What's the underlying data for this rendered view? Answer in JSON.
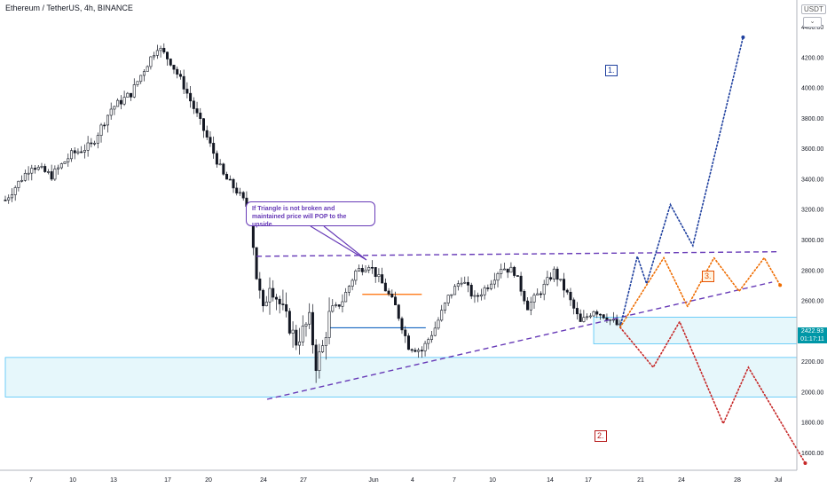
{
  "chart_title": "Ethereum / TetherUS, 4h, BINANCE",
  "currency": "USDT",
  "nav_icon": "chevron-icon",
  "callout_text": "If Triangle is not broken and maintained price will POP to the upside.",
  "scenario_labels": {
    "one": "1.",
    "two": "2.",
    "three": "3."
  },
  "last_price": {
    "value": "2422.93",
    "countdown": "01:17:11"
  },
  "colors": {
    "candle": "#131722",
    "triangle_line": "#673ab7",
    "zone_fill": "#e6f7fb",
    "zone_border": "#4fc3f7",
    "scenario_1": "#1e3f9e",
    "scenario_2": "#c62828",
    "scenario_3": "#ef6c00",
    "orange_level": "#ff6d00",
    "blue_level": "#1565c0",
    "price_label": "#0097a7"
  },
  "chart_data": {
    "type": "candlestick",
    "title": "Ethereum / TetherUS, 4h, BINANCE",
    "ylabel": "USDT",
    "ylim": [
      1500,
      4600
    ],
    "y_ticks": [
      1600,
      1800,
      2000,
      2200,
      2400,
      2600,
      2800,
      3000,
      3200,
      3400,
      3600,
      3800,
      4000,
      4200,
      4400
    ],
    "x_ticks": [
      "7",
      "10",
      "13",
      "17",
      "20",
      "24",
      "27",
      "Jun",
      "4",
      "7",
      "10",
      "14",
      "17",
      "21",
      "24",
      "28",
      "Jul"
    ],
    "grid": false,
    "price_waypoints": [
      {
        "t": 0.0,
        "p": 3260
      },
      {
        "t": 2.0,
        "p": 3490
      },
      {
        "t": 3.5,
        "p": 3420
      },
      {
        "t": 5.0,
        "p": 3560
      },
      {
        "t": 6.5,
        "p": 3620
      },
      {
        "t": 8.0,
        "p": 3860
      },
      {
        "t": 9.5,
        "p": 3960
      },
      {
        "t": 10.5,
        "p": 4120
      },
      {
        "t": 11.5,
        "p": 4270
      },
      {
        "t": 12.5,
        "p": 4170
      },
      {
        "t": 13.5,
        "p": 4010
      },
      {
        "t": 15.0,
        "p": 3720
      },
      {
        "t": 16.5,
        "p": 3420
      },
      {
        "t": 17.5,
        "p": 3320
      },
      {
        "t": 18.5,
        "p": 3190
      },
      {
        "t": 19.0,
        "p": 2760
      },
      {
        "t": 19.5,
        "p": 2520
      },
      {
        "t": 20.0,
        "p": 2720
      },
      {
        "t": 21.0,
        "p": 2530
      },
      {
        "t": 22.0,
        "p": 2330
      },
      {
        "t": 23.0,
        "p": 2470
      },
      {
        "t": 23.5,
        "p": 2180
      },
      {
        "t": 24.0,
        "p": 2290
      },
      {
        "t": 24.5,
        "p": 2500
      },
      {
        "t": 25.5,
        "p": 2600
      },
      {
        "t": 26.5,
        "p": 2790
      },
      {
        "t": 27.5,
        "p": 2840
      },
      {
        "t": 28.5,
        "p": 2710
      },
      {
        "t": 29.5,
        "p": 2560
      },
      {
        "t": 30.5,
        "p": 2300
      },
      {
        "t": 31.5,
        "p": 2270
      },
      {
        "t": 32.5,
        "p": 2420
      },
      {
        "t": 33.5,
        "p": 2620
      },
      {
        "t": 34.5,
        "p": 2740
      },
      {
        "t": 35.5,
        "p": 2610
      },
      {
        "t": 36.5,
        "p": 2700
      },
      {
        "t": 37.5,
        "p": 2820
      },
      {
        "t": 38.5,
        "p": 2790
      },
      {
        "t": 39.5,
        "p": 2560
      },
      {
        "t": 40.5,
        "p": 2660
      },
      {
        "t": 41.5,
        "p": 2790
      },
      {
        "t": 42.5,
        "p": 2640
      },
      {
        "t": 43.5,
        "p": 2450
      },
      {
        "t": 44.5,
        "p": 2540
      },
      {
        "t": 45.5,
        "p": 2490
      },
      {
        "t": 46.5,
        "p": 2423
      }
    ],
    "levels": [
      {
        "name": "orange-level",
        "price": 2640,
        "from": 27.0,
        "to": 31.5
      },
      {
        "name": "blue-level",
        "price": 2420,
        "from": 24.6,
        "to": 31.8
      }
    ],
    "zones": [
      {
        "name": "right-demand-zone",
        "from_price": 2315,
        "to_price": 2490,
        "from": 44.5,
        "to": 60.0
      },
      {
        "name": "lower-demand-zone",
        "from_price": 1965,
        "to_price": 2225,
        "from": 0.0,
        "to": 60.0
      }
    ],
    "triangle": {
      "upper": {
        "from": [
          19.0,
          2890
        ],
        "to": [
          58.5,
          2920
        ]
      },
      "lower": {
        "from": [
          19.8,
          1950
        ],
        "to": [
          58.0,
          2720
        ]
      }
    },
    "projections": [
      {
        "name": "scenario-1",
        "points": [
          [
            46.5,
            2423
          ],
          [
            47.8,
            2890
          ],
          [
            48.5,
            2710
          ],
          [
            50.3,
            3230
          ],
          [
            52.0,
            2960
          ],
          [
            55.8,
            4330
          ]
        ]
      },
      {
        "name": "scenario-2",
        "points": [
          [
            46.5,
            2423
          ],
          [
            49.0,
            2160
          ],
          [
            51.0,
            2460
          ],
          [
            54.3,
            1790
          ],
          [
            56.2,
            2160
          ],
          [
            60.5,
            1530
          ]
        ]
      },
      {
        "name": "scenario-3",
        "points": [
          [
            46.5,
            2423
          ],
          [
            49.8,
            2880
          ],
          [
            51.6,
            2560
          ],
          [
            53.6,
            2880
          ],
          [
            55.5,
            2660
          ],
          [
            57.4,
            2880
          ],
          [
            58.6,
            2700
          ]
        ]
      }
    ]
  }
}
